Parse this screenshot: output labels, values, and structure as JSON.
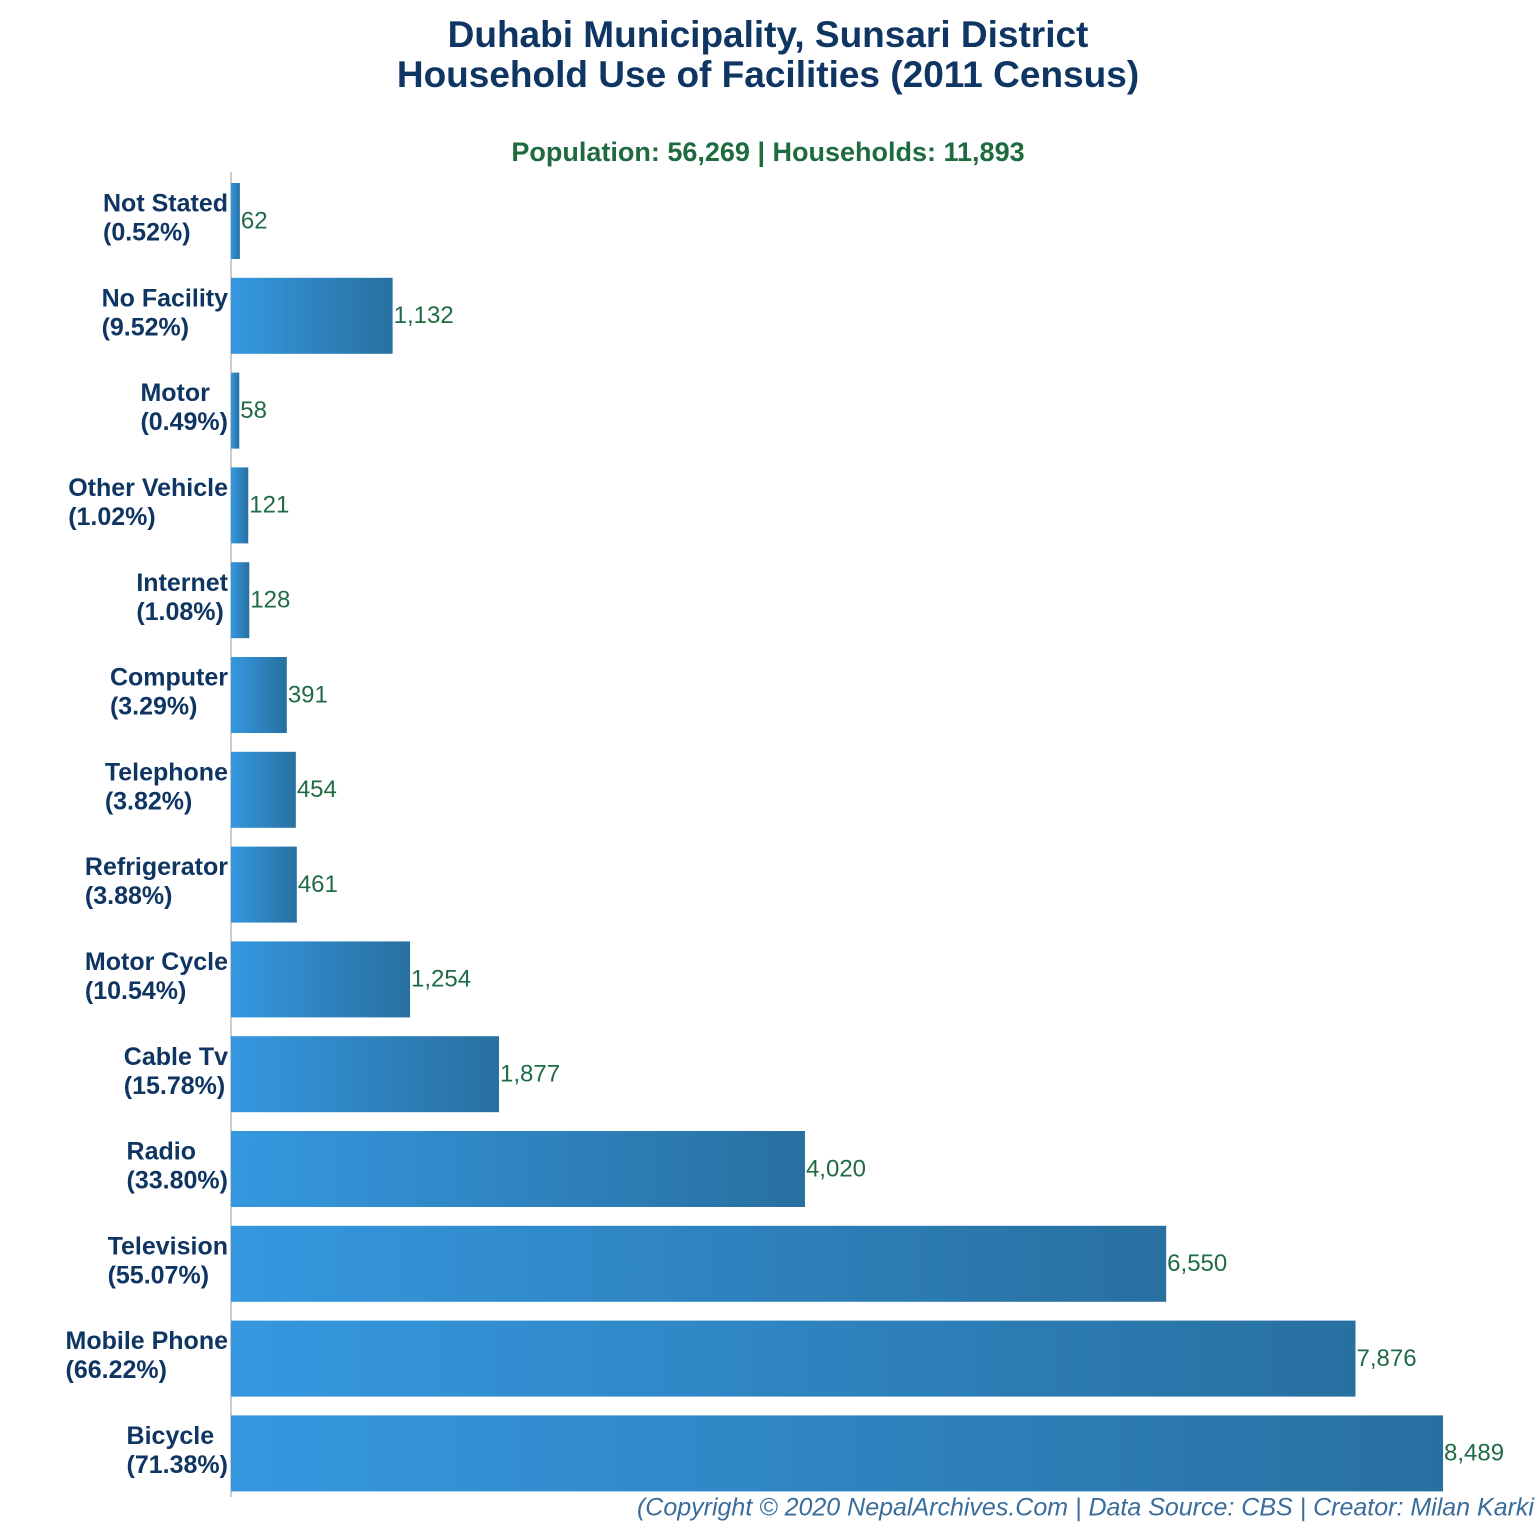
{
  "chart_data": {
    "type": "bar",
    "orientation": "horizontal",
    "title": [
      "Duhabi Municipality, Sunsari District",
      "Household Use of Facilities (2011 Census)"
    ],
    "subtitle": "Population: 56,269 | Households: 11,893",
    "footer": "(Copyright © 2020 NepalArchives.Com | Data Source: CBS | Creator: Milan Karki",
    "categories": [
      "Not Stated",
      "No Facility",
      "Motor",
      "Other Vehicle",
      "Internet",
      "Computer",
      "Telephone",
      "Refrigerator",
      "Motor Cycle",
      "Cable Tv",
      "Radio",
      "Television",
      "Mobile Phone",
      "Bicycle"
    ],
    "category_notes": [
      "(0.52%)",
      "(9.52%)",
      "(0.49%)",
      "(1.02%)",
      "(1.08%)",
      "(3.29%)",
      "(3.82%)",
      "(3.88%)",
      "(10.54%)",
      "(15.78%)",
      "(33.80%)",
      "(55.07%)",
      "(66.22%)",
      "(71.38%)"
    ],
    "values": [
      62,
      1132,
      58,
      121,
      128,
      391,
      454,
      461,
      1254,
      1877,
      4020,
      6550,
      7876,
      8489
    ],
    "value_labels": [
      "62",
      "1,132",
      "58",
      "121",
      "128",
      "391",
      "454",
      "461",
      "1,254",
      "1,877",
      "4,020",
      "6,550",
      "7,876",
      "8,489"
    ],
    "xlim": [
      0,
      8500
    ],
    "gradient": [
      "#3598e0",
      "#2870a0"
    ],
    "title_color": "#0f3562",
    "subtitle_color": "#1d6b3e",
    "value_label_color": "#1f6b45",
    "footer_color": "#3a6d9b"
  }
}
